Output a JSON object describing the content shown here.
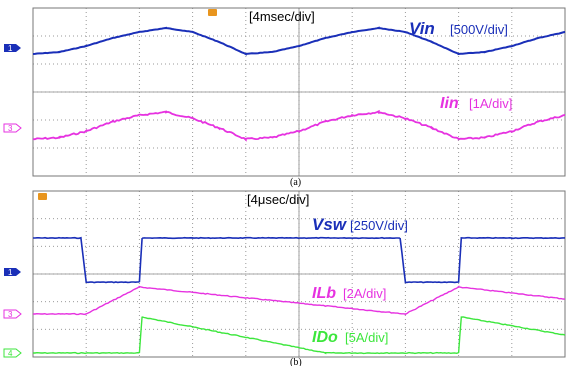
{
  "colors": {
    "ch1": "#1a2fb8",
    "ch3": "#e632e0",
    "ch4": "#3ce63c",
    "grid": "#9a9a9a",
    "trigger_marker": "#e8951e"
  },
  "panel_a": {
    "caption": "(a)",
    "timebase": "[4msec/div]",
    "channel_markers": [
      "1",
      "3"
    ],
    "labels": {
      "vin_symbol": "Vin",
      "vin_scale": "[500V/div]",
      "iin_symbol": "Iin",
      "iin_scale": "[1A/div]"
    }
  },
  "panel_b": {
    "caption": "(b)",
    "timebase": "[4μsec/div]",
    "channel_markers": [
      "1",
      "3",
      "4"
    ],
    "labels": {
      "vsw_symbol": "Vsw",
      "vsw_scale": "[250V/div]",
      "ilb_symbol": "ILb",
      "ilb_scale": "[2A/div]",
      "ido_symbol": "IDo",
      "ido_scale": "[5A/div]"
    }
  },
  "chart_data": [
    {
      "type": "line",
      "title": "(a)",
      "x_unit": "div",
      "x_range": [
        0,
        10
      ],
      "divisions": {
        "x": 10,
        "y": 6
      },
      "series": [
        {
          "name": "Vin [500V/div]",
          "unit": "div",
          "x": [
            0,
            0.5,
            1,
            1.5,
            2,
            2.5,
            3,
            3.5,
            4,
            4.5,
            5,
            5.5,
            6,
            6.5,
            7,
            7.5,
            8,
            8.5,
            9,
            9.5,
            10
          ],
          "y": [
            -0.3,
            -0.2,
            0.1,
            0.5,
            0.8,
            1.0,
            0.8,
            0.3,
            -0.3,
            -0.2,
            0.1,
            0.5,
            0.8,
            1.0,
            0.8,
            0.3,
            -0.3,
            -0.2,
            0.1,
            0.5,
            0.8
          ]
        },
        {
          "name": "Iin [1A/div]",
          "unit": "div",
          "x": [
            0,
            0.5,
            1,
            1.5,
            2,
            2.5,
            3,
            3.5,
            4,
            4.5,
            5,
            5.5,
            6,
            6.5,
            7,
            7.5,
            8,
            8.5,
            9,
            9.5,
            10
          ],
          "y": [
            -0.7,
            -0.6,
            -0.2,
            0.4,
            0.8,
            1.0,
            0.6,
            0.0,
            -0.7,
            -0.6,
            -0.2,
            0.4,
            0.8,
            1.0,
            0.6,
            0.0,
            -0.7,
            -0.6,
            -0.2,
            0.4,
            0.8
          ]
        }
      ]
    },
    {
      "type": "line",
      "title": "(b)",
      "x_unit": "div",
      "x_range": [
        0,
        10
      ],
      "divisions": {
        "x": 10,
        "y": 6
      },
      "series": [
        {
          "name": "Vsw [250V/div]",
          "unit": "div",
          "x": [
            0,
            0.9,
            1.0,
            2.0,
            2.05,
            3.0,
            6.9,
            7.0,
            8.0,
            8.05,
            9.0,
            10
          ],
          "y": [
            1.0,
            1.0,
            -0.3,
            -0.3,
            1.0,
            1.0,
            1.0,
            -0.3,
            -0.3,
            1.0,
            1.0,
            1.0
          ]
        },
        {
          "name": "ILb [2A/div]",
          "unit": "div",
          "x": [
            0,
            1.0,
            2.0,
            7.0,
            8.0,
            10
          ],
          "y": [
            0.0,
            0.0,
            0.9,
            0.0,
            0.9,
            0.5
          ]
        },
        {
          "name": "IDo [5A/div]",
          "unit": "div",
          "x": [
            0,
            2.0,
            2.05,
            5.5,
            8.0,
            8.05,
            10
          ],
          "y": [
            0.0,
            0.0,
            1.0,
            0.0,
            0.0,
            1.0,
            0.5
          ]
        }
      ]
    }
  ]
}
